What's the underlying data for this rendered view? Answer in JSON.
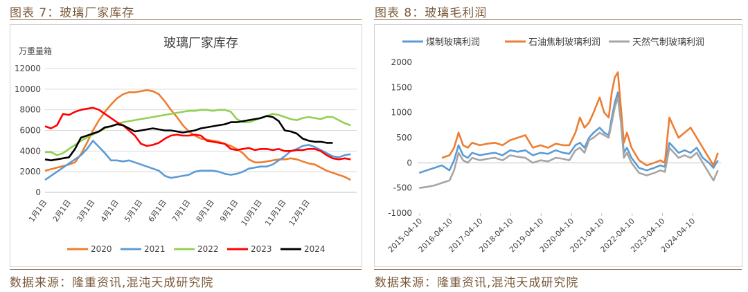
{
  "figures": {
    "left_title": "图表 7：玻璃厂家库存",
    "right_title": "图表 8：玻璃毛利润",
    "left_source": "数据来源：隆重资讯,混沌天成研究院",
    "right_source": "数据来源：隆重资讯,混沌天成研究院"
  },
  "colors": {
    "title_brown": "#7a5a3a",
    "s2020": "#ed7d31",
    "s2021": "#5b9bd5",
    "s2022": "#92d050",
    "s2023": "#ff0000",
    "s2024": "#000000",
    "coal": "#5b9bd5",
    "coke": "#ed7d31",
    "gas": "#a5a5a5"
  },
  "chart_data": [
    {
      "type": "line",
      "title": "玻璃厂家库存",
      "ylabel": "万重量箱",
      "xlabel": "",
      "ylim": [
        0,
        12000
      ],
      "yticks": [
        0,
        2000,
        4000,
        6000,
        8000,
        10000,
        12000
      ],
      "x_ticks": [
        "1月1日",
        "2月1日",
        "3月1日",
        "4月1日",
        "5月1日",
        "6月1日",
        "7月1日",
        "8月1日",
        "9月1日",
        "10月1日",
        "11月1日",
        "12月1日"
      ],
      "grid": true,
      "legend": "bottom",
      "series": [
        {
          "name": "2020",
          "x": [
            1,
            3,
            5,
            6,
            7,
            8,
            9,
            10,
            11,
            12,
            13,
            14,
            15,
            16,
            17,
            18,
            19,
            20,
            21,
            22,
            23,
            24,
            25,
            26,
            27,
            28,
            29,
            30,
            31,
            32,
            33,
            34,
            35,
            36,
            37,
            38,
            39,
            40,
            41,
            42,
            43,
            44,
            45,
            46,
            47,
            48,
            49,
            50,
            51,
            52
          ],
          "values": [
            2100,
            2400,
            2700,
            2900,
            3700,
            4800,
            6000,
            7000,
            7800,
            8500,
            9100,
            9500,
            9700,
            9700,
            9800,
            9900,
            9800,
            9500,
            8800,
            8000,
            7300,
            6500,
            5900,
            5500,
            5200,
            5100,
            5000,
            4900,
            4700,
            4500,
            4200,
            3800,
            3200,
            2900,
            2900,
            3000,
            3100,
            3200,
            3200,
            3300,
            3200,
            3000,
            2800,
            2700,
            2400,
            2100,
            1900,
            1700,
            1500,
            1200
          ]
        },
        {
          "name": "2021",
          "x": [
            1,
            2,
            3,
            4,
            5,
            6,
            7,
            8,
            9,
            10,
            11,
            12,
            13,
            14,
            15,
            16,
            17,
            18,
            19,
            20,
            21,
            22,
            23,
            24,
            25,
            26,
            27,
            28,
            29,
            30,
            31,
            32,
            33,
            34,
            35,
            36,
            37,
            38,
            39,
            40,
            41,
            42,
            43,
            44,
            45,
            46,
            47,
            48,
            49,
            50,
            51,
            52
          ],
          "values": [
            1200,
            1600,
            2000,
            2400,
            2800,
            3200,
            3600,
            4200,
            5000,
            4400,
            3800,
            3100,
            3100,
            3000,
            3100,
            2900,
            2700,
            2500,
            2300,
            2100,
            1600,
            1400,
            1500,
            1600,
            1700,
            2000,
            2100,
            2100,
            2100,
            2000,
            1800,
            1700,
            1800,
            2000,
            2300,
            2400,
            2500,
            2500,
            2700,
            3100,
            3500,
            4000,
            4200,
            4500,
            4600,
            4400,
            4100,
            3800,
            3500,
            3400,
            3600,
            3700
          ]
        },
        {
          "name": "2022",
          "x": [
            1,
            2,
            3,
            4,
            5,
            6,
            7,
            8,
            9,
            10,
            11,
            12,
            13,
            14,
            15,
            16,
            17,
            18,
            19,
            20,
            21,
            22,
            23,
            24,
            25,
            26,
            27,
            28,
            29,
            30,
            31,
            32,
            33,
            34,
            35,
            36,
            37,
            38,
            39,
            40,
            41,
            42,
            43,
            44,
            45,
            46,
            47,
            48,
            49,
            50,
            51,
            52
          ],
          "values": [
            3900,
            3900,
            3600,
            3800,
            4200,
            4600,
            5000,
            5300,
            5600,
            5900,
            6200,
            6400,
            6600,
            6800,
            6900,
            7000,
            7100,
            7200,
            7300,
            7400,
            7500,
            7600,
            7700,
            7800,
            7900,
            7900,
            8000,
            8000,
            7900,
            8000,
            8000,
            7800,
            7100,
            6800,
            6800,
            7000,
            7200,
            7400,
            7600,
            7500,
            7300,
            7100,
            7000,
            7200,
            7300,
            7200,
            7100,
            7300,
            7300,
            7000,
            6700,
            6500
          ]
        },
        {
          "name": "2023",
          "x": [
            1,
            2,
            3,
            4,
            5,
            6,
            7,
            8,
            9,
            10,
            11,
            12,
            13,
            14,
            15,
            16,
            17,
            18,
            19,
            20,
            21,
            22,
            23,
            24,
            25,
            26,
            27,
            28,
            29,
            30,
            31,
            32,
            33,
            34,
            35,
            36,
            37,
            38,
            39,
            40,
            41,
            42,
            43,
            44,
            45,
            46,
            47,
            48,
            49,
            50,
            51,
            52
          ],
          "values": [
            6400,
            6200,
            6500,
            7600,
            7500,
            7800,
            8000,
            8100,
            8200,
            8000,
            7600,
            7200,
            6800,
            6500,
            6000,
            5500,
            4700,
            4500,
            4600,
            4800,
            5200,
            5500,
            5600,
            5500,
            5500,
            5600,
            5500,
            5000,
            4900,
            4800,
            4700,
            4200,
            4100,
            4200,
            4300,
            4100,
            4200,
            4200,
            4100,
            4200,
            4000,
            4000,
            4100,
            4100,
            4200,
            4200,
            4000,
            3600,
            3300,
            3200,
            3300,
            3200
          ]
        },
        {
          "name": "2024",
          "x": [
            1,
            2,
            3,
            4,
            5,
            6,
            7,
            8,
            9,
            10,
            11,
            12,
            13,
            14,
            15,
            16,
            17,
            18,
            19,
            20,
            21,
            22,
            23,
            24,
            25,
            26,
            27,
            28,
            29,
            30,
            31,
            32,
            33,
            34,
            35,
            36,
            37,
            38,
            39,
            40,
            41,
            42,
            43,
            44,
            45,
            46,
            47,
            48,
            49
          ],
          "values": [
            3200,
            3100,
            3200,
            3300,
            3400,
            4200,
            5300,
            5500,
            5700,
            5900,
            6300,
            6400,
            6600,
            6500,
            6200,
            5900,
            6000,
            6100,
            6200,
            6100,
            6000,
            6000,
            5900,
            5800,
            5900,
            6000,
            6200,
            6300,
            6400,
            6500,
            6600,
            6800,
            6800,
            6900,
            7000,
            7100,
            7200,
            7400,
            7300,
            6900,
            6000,
            5900,
            5700,
            5200,
            5000,
            4900,
            4900,
            4800,
            4800
          ]
        }
      ]
    },
    {
      "type": "line",
      "title": "",
      "xlabel": "",
      "ylabel": "",
      "ylim": [
        -1000,
        2000
      ],
      "yticks": [
        -1000,
        -500,
        0,
        500,
        1000,
        1500,
        2000
      ],
      "x_ticks": [
        "2015-04-10",
        "2016-04-10",
        "2017-04-10",
        "2018-04-10",
        "2019-04-10",
        "2020-04-10",
        "2021-04-10",
        "2022-04-10",
        "2023-04-10",
        "2024-04-10"
      ],
      "grid": false,
      "legend": "top",
      "series": [
        {
          "name": "煤制玻璃利润",
          "x": [
            2015.25,
            2015.5,
            2015.75,
            2016.0,
            2016.25,
            2016.4,
            2016.55,
            2016.7,
            2016.85,
            2017.0,
            2017.25,
            2017.5,
            2017.75,
            2018.0,
            2018.25,
            2018.5,
            2018.75,
            2019.0,
            2019.25,
            2019.5,
            2019.75,
            2020.0,
            2020.2,
            2020.4,
            2020.55,
            2020.7,
            2020.85,
            2021.0,
            2021.2,
            2021.35,
            2021.5,
            2021.6,
            2021.7,
            2021.8,
            2021.9,
            2022.0,
            2022.1,
            2022.25,
            2022.5,
            2022.75,
            2023.0,
            2023.2,
            2023.35,
            2023.5,
            2023.65,
            2023.8,
            2024.0,
            2024.2,
            2024.4,
            2024.6,
            2024.8,
            2024.95,
            2025.1
          ],
          "values": [
            -200,
            -150,
            -100,
            -50,
            -150,
            50,
            350,
            150,
            100,
            200,
            150,
            180,
            200,
            150,
            250,
            220,
            250,
            150,
            200,
            180,
            250,
            200,
            180,
            350,
            400,
            300,
            500,
            600,
            700,
            600,
            550,
            900,
            1200,
            1400,
            900,
            200,
            300,
            100,
            -100,
            -150,
            -100,
            -50,
            -80,
            400,
            300,
            200,
            250,
            200,
            300,
            100,
            0,
            -100,
            50
          ]
        },
        {
          "name": "石油焦制玻璃利润",
          "x": [
            2016.0,
            2016.25,
            2016.4,
            2016.55,
            2016.7,
            2016.85,
            2017.0,
            2017.25,
            2017.5,
            2017.75,
            2018.0,
            2018.25,
            2018.5,
            2018.75,
            2019.0,
            2019.25,
            2019.5,
            2019.75,
            2020.0,
            2020.2,
            2020.4,
            2020.55,
            2020.7,
            2020.85,
            2021.0,
            2021.2,
            2021.35,
            2021.5,
            2021.6,
            2021.7,
            2021.8,
            2021.9,
            2022.0,
            2022.1,
            2022.25,
            2022.5,
            2022.75,
            2023.0,
            2023.2,
            2023.35,
            2023.5,
            2023.65,
            2023.8,
            2024.0,
            2024.2,
            2024.4,
            2024.6,
            2024.8,
            2024.95,
            2025.1
          ],
          "values": [
            100,
            150,
            300,
            600,
            350,
            300,
            400,
            350,
            380,
            400,
            350,
            450,
            500,
            550,
            300,
            350,
            300,
            380,
            350,
            350,
            600,
            900,
            700,
            800,
            1000,
            1300,
            1000,
            900,
            1400,
            1700,
            1800,
            1100,
            400,
            600,
            300,
            50,
            -50,
            0,
            50,
            0,
            900,
            700,
            500,
            600,
            700,
            500,
            300,
            100,
            -50,
            200
          ]
        },
        {
          "name": "天然气制玻璃利润",
          "x": [
            2015.25,
            2015.5,
            2015.75,
            2016.0,
            2016.25,
            2016.4,
            2016.55,
            2016.7,
            2016.85,
            2017.0,
            2017.25,
            2017.5,
            2017.75,
            2018.0,
            2018.25,
            2018.5,
            2018.75,
            2019.0,
            2019.25,
            2019.5,
            2019.75,
            2020.0,
            2020.2,
            2020.4,
            2020.55,
            2020.7,
            2020.85,
            2021.0,
            2021.2,
            2021.35,
            2021.5,
            2021.6,
            2021.7,
            2021.8,
            2021.9,
            2022.0,
            2022.1,
            2022.25,
            2022.5,
            2022.75,
            2023.0,
            2023.2,
            2023.35,
            2023.5,
            2023.65,
            2023.8,
            2024.0,
            2024.2,
            2024.4,
            2024.6,
            2024.8,
            2024.95,
            2025.1
          ],
          "values": [
            -500,
            -480,
            -450,
            -400,
            -350,
            -150,
            200,
            50,
            0,
            100,
            50,
            80,
            100,
            50,
            150,
            120,
            100,
            0,
            50,
            30,
            100,
            80,
            50,
            250,
            300,
            200,
            450,
            500,
            600,
            550,
            500,
            800,
            1100,
            1300,
            800,
            100,
            200,
            0,
            -200,
            -250,
            -200,
            -150,
            -180,
            300,
            200,
            100,
            150,
            100,
            200,
            0,
            -200,
            -350,
            -150
          ]
        }
      ]
    }
  ]
}
